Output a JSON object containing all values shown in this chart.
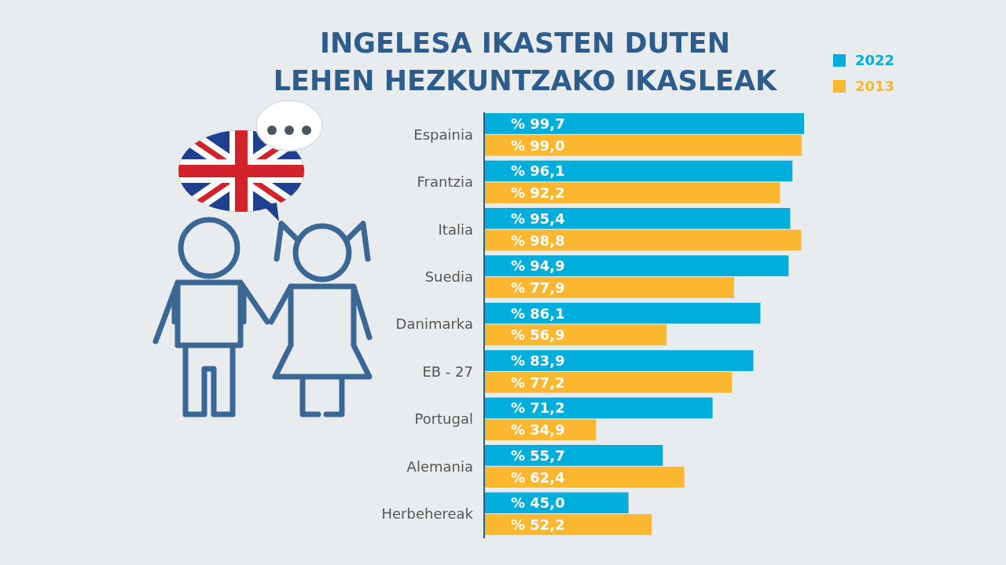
{
  "chart_data": {
    "type": "bar",
    "orientation": "horizontal",
    "title": "INGELESA IKASTEN DUTEN\nLEHEN HEZKUNTZAKO IKASLEAK",
    "categories": [
      "Espainia",
      "Frantzia",
      "Italia",
      "Suedia",
      "Danimarka",
      "EB - 27",
      "Portugal",
      "Alemania",
      "Herbehereak"
    ],
    "series": [
      {
        "name": "2022",
        "color": "#00aedb",
        "values": [
          99.7,
          96.1,
          95.4,
          94.9,
          86.1,
          83.9,
          71.2,
          55.7,
          45.0
        ],
        "value_labels": [
          "% 99,7",
          "% 96,1",
          "% 95,4",
          "% 94,9",
          "% 86,1",
          "% 83,9",
          "% 71,2",
          "% 55,7",
          "% 45,0"
        ]
      },
      {
        "name": "2013",
        "color": "#fbb72f",
        "values": [
          99.0,
          92.2,
          98.8,
          77.9,
          56.9,
          77.2,
          34.9,
          62.4,
          52.2
        ],
        "value_labels": [
          "% 99,0",
          "% 92,2",
          "% 98,8",
          "% 77,9",
          "% 56,9",
          "% 77,2",
          "% 34,9",
          "% 62,4",
          "% 52,2"
        ]
      }
    ],
    "legend": "top right"
  }
}
